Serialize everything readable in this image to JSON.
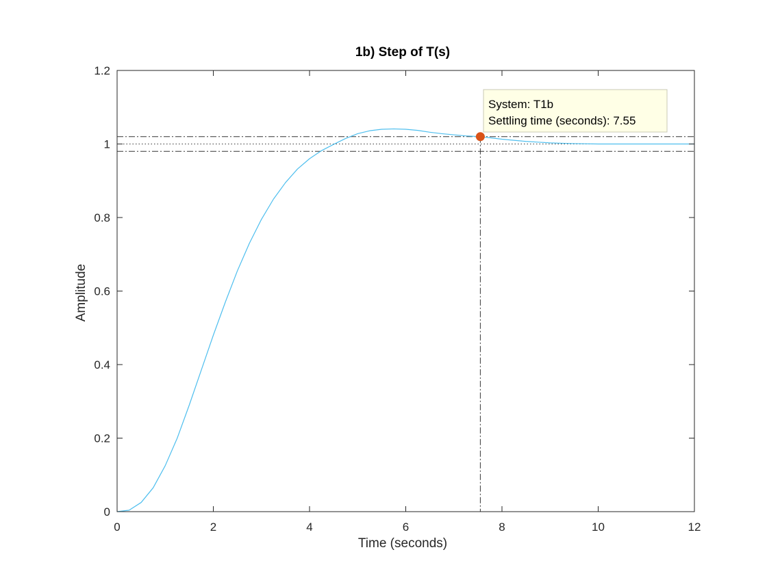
{
  "chart_data": {
    "type": "line",
    "title": "1b) Step of T(s)",
    "xlabel": "Time (seconds)",
    "ylabel": "Amplitude",
    "xlim": [
      0,
      12
    ],
    "ylim": [
      0,
      1.2
    ],
    "xticks": [
      0,
      2,
      4,
      6,
      8,
      10,
      12
    ],
    "yticks": [
      0,
      0.2,
      0.4,
      0.6,
      0.8,
      1,
      1.2
    ],
    "xtick_labels": [
      "0",
      "2",
      "4",
      "6",
      "8",
      "10",
      "12"
    ],
    "ytick_labels": [
      "0",
      "0.2",
      "0.4",
      "0.6",
      "0.8",
      "1",
      "1.2"
    ],
    "grid": false,
    "series": [
      {
        "color": "#4DBEEE",
        "x": [
          0,
          0.25,
          0.5,
          0.75,
          1.0,
          1.25,
          1.5,
          1.75,
          2.0,
          2.25,
          2.5,
          2.75,
          3.0,
          3.25,
          3.5,
          3.75,
          4.0,
          4.25,
          4.5,
          4.75,
          5.0,
          5.25,
          5.5,
          5.75,
          6.0,
          6.25,
          6.5,
          6.75,
          7.0,
          7.25,
          7.55,
          7.75,
          8.0,
          8.25,
          8.5,
          8.75,
          9.0,
          9.25,
          9.5,
          10.0,
          10.5,
          11.0,
          11.5,
          12.0
        ],
        "y": [
          0,
          0.004,
          0.025,
          0.065,
          0.125,
          0.2,
          0.29,
          0.385,
          0.48,
          0.57,
          0.655,
          0.73,
          0.795,
          0.85,
          0.895,
          0.932,
          0.96,
          0.982,
          0.999,
          1.015,
          1.028,
          1.036,
          1.04,
          1.041,
          1.04,
          1.037,
          1.032,
          1.028,
          1.025,
          1.022,
          1.02,
          1.017,
          1.013,
          1.01,
          1.007,
          1.005,
          1.003,
          1.002,
          1.001,
          1.0,
          1.0,
          1.0,
          1.0,
          1.0
        ]
      }
    ],
    "reference_lines": {
      "final_value": 1.0,
      "settling_upper": 1.02,
      "settling_lower": 0.98,
      "settling_time": 7.55
    },
    "settling_point": {
      "x": 7.55,
      "y": 1.02,
      "color": "#D95319"
    },
    "datatip": {
      "line1": "System: T1b",
      "line2": "Settling time (seconds): 7.55"
    }
  }
}
